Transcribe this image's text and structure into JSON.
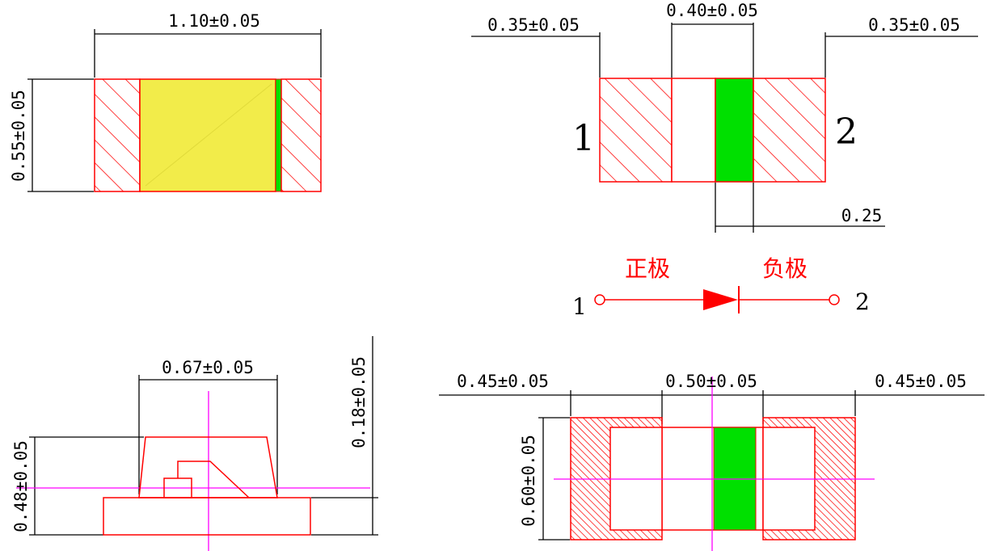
{
  "colors": {
    "outline": "#ff0000",
    "dimension_line": "#000000",
    "led_chip": "#00e000",
    "lens_fill": "#f2ec4a",
    "center_line": "#ff00ff"
  },
  "top_view": {
    "width_label": "1.10±0.05",
    "height_label": "0.55±0.05"
  },
  "bottom_view": {
    "left_pad_label": "0.35±0.05",
    "gap_label": "0.40±0.05",
    "right_pad_label": "0.35±0.05",
    "chip_width_label": "0.25",
    "pin_left": "1",
    "pin_right": "2"
  },
  "polarity": {
    "anode_label": "正极",
    "cathode_label": "负极",
    "pin_left": "1",
    "pin_right": "2"
  },
  "side_view": {
    "lens_width_label": "0.67±0.05",
    "total_height_label": "0.48±0.05",
    "substrate_label": "0.18±0.05"
  },
  "footprint": {
    "left_pad_label": "0.45±0.05",
    "gap_label": "0.50±0.05",
    "right_pad_label": "0.45±0.05",
    "height_label": "0.60±0.05"
  }
}
